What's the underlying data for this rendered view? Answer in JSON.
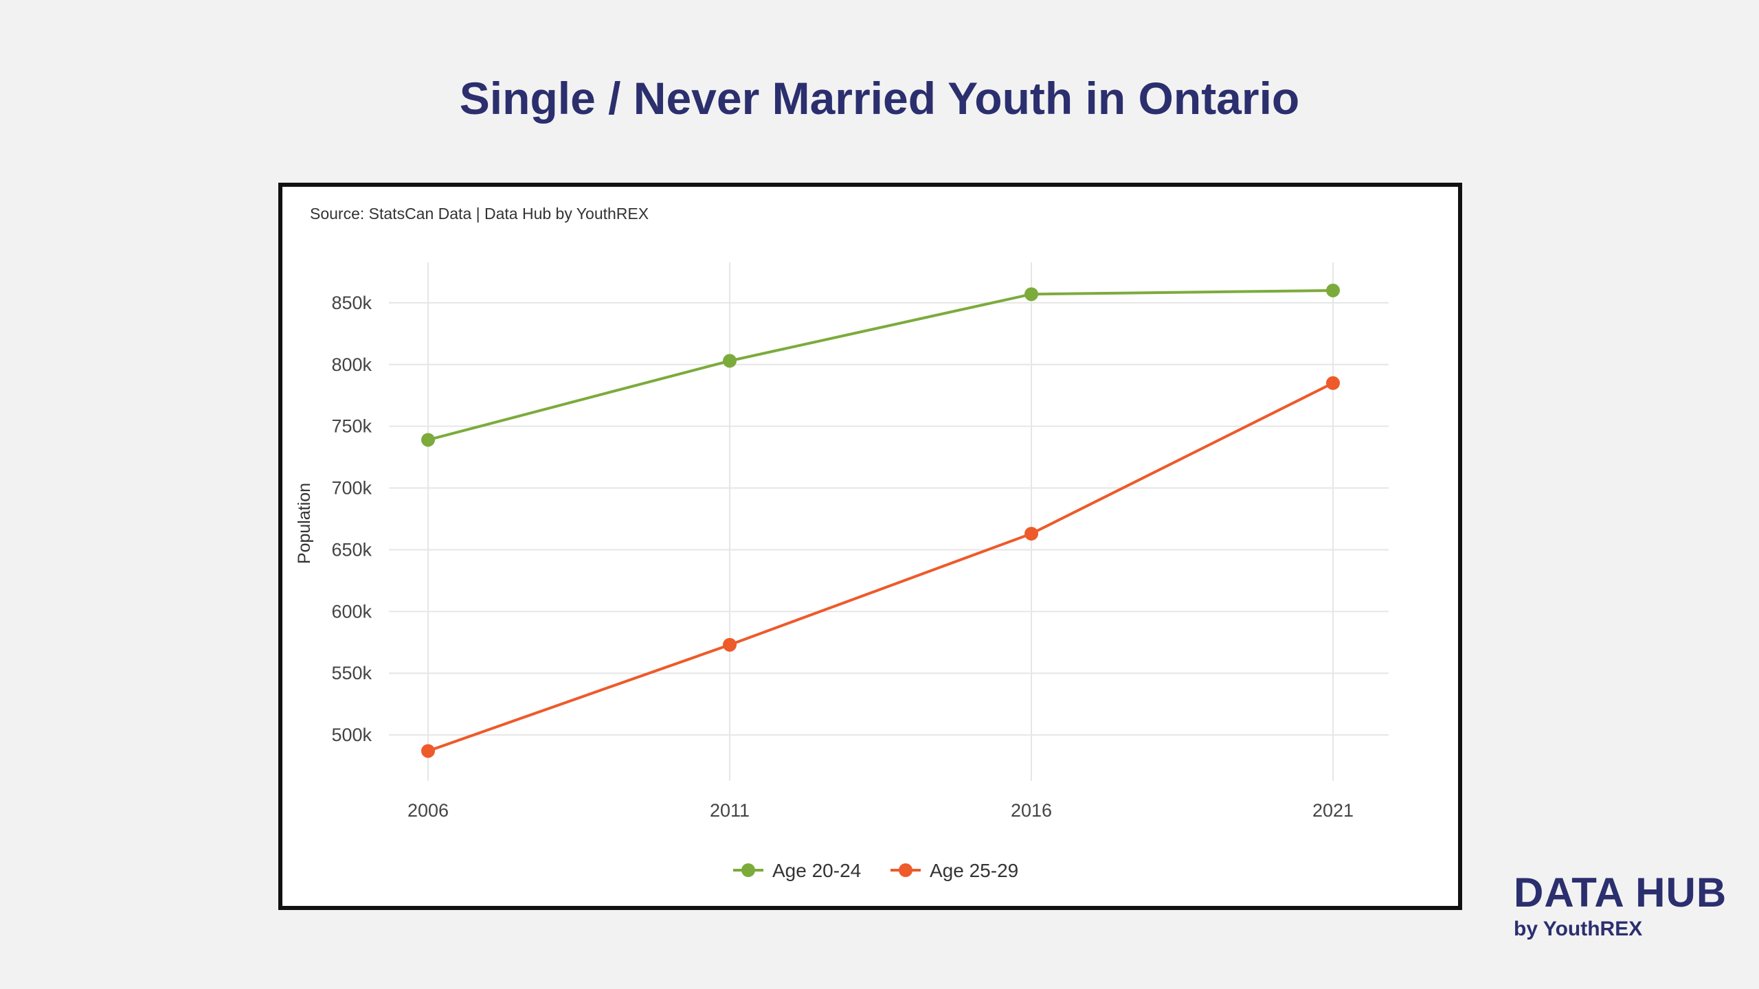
{
  "title": "Single / Never Married Youth in Ontario",
  "source": "Source: StatsCan Data | Data Hub by YouthREX",
  "brand": {
    "name": "DATA HUB",
    "subtitle": "by YouthREX"
  },
  "chart_data": {
    "type": "line",
    "x": [
      "2006",
      "2011",
      "2016",
      "2021"
    ],
    "ylabel": "Population",
    "xlabel": "",
    "ylim": [
      465000,
      885000
    ],
    "yticks": [
      500000,
      550000,
      600000,
      650000,
      700000,
      750000,
      800000,
      850000
    ],
    "ytick_labels": [
      "500k",
      "550k",
      "600k",
      "650k",
      "700k",
      "750k",
      "800k",
      "850k"
    ],
    "grid": true,
    "legend": "bottom",
    "series": [
      {
        "name": "Age 20-24",
        "color": "#7cab3c",
        "values": [
          739000,
          803000,
          857000,
          860000
        ]
      },
      {
        "name": "Age 25-29",
        "color": "#ee5a2a",
        "values": [
          487000,
          573000,
          663000,
          785000
        ]
      }
    ]
  }
}
